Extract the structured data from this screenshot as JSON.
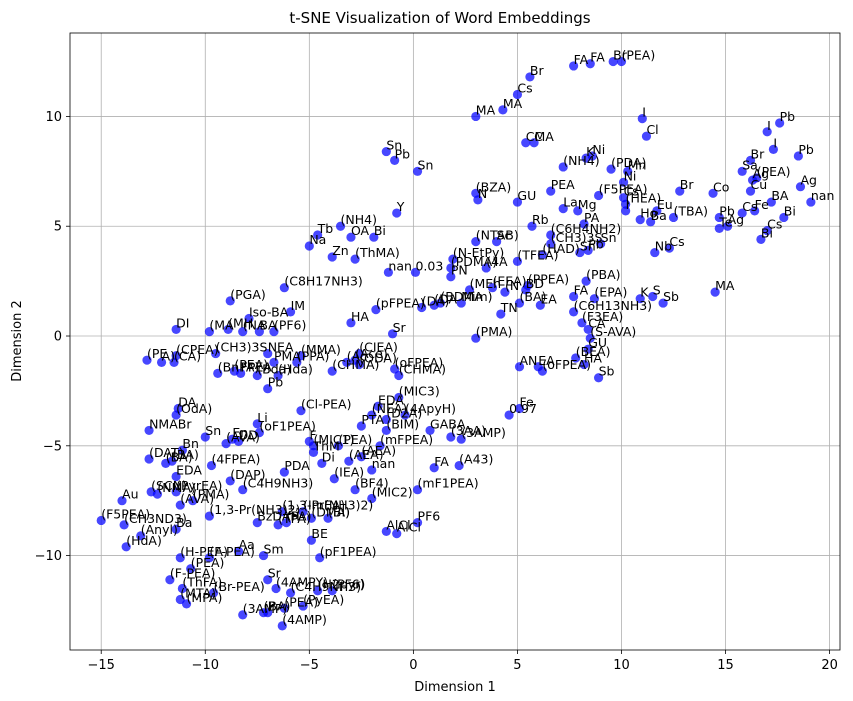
{
  "chart_data": {
    "type": "scatter",
    "title": "t-SNE Visualization of Word Embeddings",
    "xlabel": "Dimension 1",
    "ylabel": "Dimension 2",
    "xlim": [
      -16.5,
      20.5
    ],
    "ylim": [
      -14.3,
      13.8
    ],
    "xticks": [
      -15,
      -10,
      -5,
      0,
      5,
      10,
      15,
      20
    ],
    "yticks": [
      -10,
      -5,
      0,
      5,
      10
    ],
    "grid": true,
    "marker_color": "#0000ff",
    "points": [
      {
        "x": 7.7,
        "y": 12.3,
        "label": "FA"
      },
      {
        "x": 8.5,
        "y": 12.4,
        "label": "FA"
      },
      {
        "x": 9.6,
        "y": 12.5,
        "label": "Br"
      },
      {
        "x": 10.0,
        "y": 12.5,
        "label": "(PEA)"
      },
      {
        "x": 5.6,
        "y": 11.8,
        "label": "Br"
      },
      {
        "x": 5.0,
        "y": 11.0,
        "label": "Cs"
      },
      {
        "x": 4.3,
        "y": 10.3,
        "label": "MA"
      },
      {
        "x": 3.0,
        "y": 10.0,
        "label": "MA"
      },
      {
        "x": 11.0,
        "y": 9.9,
        "label": "I"
      },
      {
        "x": 11.2,
        "y": 9.1,
        "label": "Cl"
      },
      {
        "x": 17.0,
        "y": 9.3,
        "label": "I"
      },
      {
        "x": 17.6,
        "y": 9.7,
        "label": "Pb"
      },
      {
        "x": 5.4,
        "y": 8.8,
        "label": "CMA"
      },
      {
        "x": 5.8,
        "y": 8.8,
        "label": "C"
      },
      {
        "x": 17.3,
        "y": 8.5,
        "label": "I"
      },
      {
        "x": 18.5,
        "y": 8.2,
        "label": "Pb"
      },
      {
        "x": -1.3,
        "y": 8.4,
        "label": "Sn"
      },
      {
        "x": -0.9,
        "y": 8.0,
        "label": "Pb"
      },
      {
        "x": 0.2,
        "y": 7.5,
        "label": "Sn"
      },
      {
        "x": 8.3,
        "y": 8.1,
        "label": "K"
      },
      {
        "x": 8.6,
        "y": 8.2,
        "label": "Ni"
      },
      {
        "x": 7.2,
        "y": 7.7,
        "label": "(NH4)"
      },
      {
        "x": 9.5,
        "y": 7.6,
        "label": "(PDA)"
      },
      {
        "x": 10.3,
        "y": 7.5,
        "label": "Mn"
      },
      {
        "x": 16.2,
        "y": 8.0,
        "label": "Br"
      },
      {
        "x": 15.8,
        "y": 7.5,
        "label": "Sa"
      },
      {
        "x": 16.5,
        "y": 7.2,
        "label": "(PEA)"
      },
      {
        "x": 16.3,
        "y": 7.1,
        "label": "Ag"
      },
      {
        "x": 10.1,
        "y": 7.0,
        "label": "Ni"
      },
      {
        "x": 3.0,
        "y": 6.5,
        "label": "(BZA)"
      },
      {
        "x": 3.1,
        "y": 6.2,
        "label": "N"
      },
      {
        "x": 5.0,
        "y": 6.1,
        "label": "GU"
      },
      {
        "x": 6.6,
        "y": 6.6,
        "label": "PEA"
      },
      {
        "x": 8.9,
        "y": 6.4,
        "label": "(F5PEA)"
      },
      {
        "x": 10.1,
        "y": 6.3,
        "label": "Cs"
      },
      {
        "x": 12.8,
        "y": 6.6,
        "label": "Br"
      },
      {
        "x": 14.4,
        "y": 6.5,
        "label": "Co"
      },
      {
        "x": 16.2,
        "y": 6.6,
        "label": "Cu"
      },
      {
        "x": 17.2,
        "y": 6.1,
        "label": "BA"
      },
      {
        "x": 18.6,
        "y": 6.8,
        "label": "Ag"
      },
      {
        "x": 19.1,
        "y": 6.1,
        "label": "nan"
      },
      {
        "x": 10.2,
        "y": 6.0,
        "label": "(HEA)"
      },
      {
        "x": 7.2,
        "y": 5.8,
        "label": "La"
      },
      {
        "x": 7.9,
        "y": 5.7,
        "label": "Mg"
      },
      {
        "x": 10.2,
        "y": 5.7,
        "label": "I"
      },
      {
        "x": 11.7,
        "y": 5.7,
        "label": "Eu"
      },
      {
        "x": 12.5,
        "y": 5.4,
        "label": "(TBA)"
      },
      {
        "x": 14.7,
        "y": 5.4,
        "label": "Pb"
      },
      {
        "x": 15.8,
        "y": 5.6,
        "label": "Cs"
      },
      {
        "x": 16.4,
        "y": 5.7,
        "label": "Fe"
      },
      {
        "x": 17.8,
        "y": 5.4,
        "label": "Bi"
      },
      {
        "x": -0.8,
        "y": 5.6,
        "label": "Y"
      },
      {
        "x": 8.2,
        "y": 5.1,
        "label": "PA"
      },
      {
        "x": 10.9,
        "y": 5.3,
        "label": "Ho"
      },
      {
        "x": 11.4,
        "y": 5.2,
        "label": "Ba"
      },
      {
        "x": 14.7,
        "y": 4.9,
        "label": "Te"
      },
      {
        "x": 15.1,
        "y": 5.0,
        "label": "Ag"
      },
      {
        "x": 17.0,
        "y": 4.8,
        "label": "Cs"
      },
      {
        "x": -4.6,
        "y": 4.6,
        "label": "Tb"
      },
      {
        "x": -3.5,
        "y": 5.0,
        "label": "(NH4)"
      },
      {
        "x": 5.7,
        "y": 5.0,
        "label": "Rb"
      },
      {
        "x": 3.0,
        "y": 4.3,
        "label": "(NTAB)"
      },
      {
        "x": 6.6,
        "y": 4.6,
        "label": "(C6H4NH2)"
      },
      {
        "x": -3.0,
        "y": 4.5,
        "label": "OA"
      },
      {
        "x": -1.9,
        "y": 4.5,
        "label": "Bi"
      },
      {
        "x": 4.0,
        "y": 4.3,
        "label": "Sc"
      },
      {
        "x": 6.6,
        "y": 4.2,
        "label": "(CH3)3S"
      },
      {
        "x": 9.0,
        "y": 4.2,
        "label": "Sn"
      },
      {
        "x": 16.7,
        "y": 4.4,
        "label": "Bi"
      },
      {
        "x": -5.0,
        "y": 4.1,
        "label": "Na"
      },
      {
        "x": 11.6,
        "y": 3.8,
        "label": "Nb"
      },
      {
        "x": 12.3,
        "y": 4.0,
        "label": "Cs"
      },
      {
        "x": 8.4,
        "y": 3.9,
        "label": "Pb"
      },
      {
        "x": 8.0,
        "y": 3.8,
        "label": "Sn"
      },
      {
        "x": 6.2,
        "y": 3.7,
        "label": "(HAD)"
      },
      {
        "x": 1.9,
        "y": 3.5,
        "label": "(N-EtPy)"
      },
      {
        "x": -3.9,
        "y": 3.6,
        "label": "Zn"
      },
      {
        "x": -2.8,
        "y": 3.5,
        "label": "(ThMA)"
      },
      {
        "x": 5.0,
        "y": 3.4,
        "label": "(TFEA)"
      },
      {
        "x": 1.8,
        "y": 3.1,
        "label": "(PDMA)"
      },
      {
        "x": 3.5,
        "y": 3.1,
        "label": "(4A"
      },
      {
        "x": -1.2,
        "y": 2.9,
        "label": "nan"
      },
      {
        "x": 0.1,
        "y": 2.9,
        "label": "0.03"
      },
      {
        "x": 1.8,
        "y": 2.7,
        "label": "PN"
      },
      {
        "x": -6.2,
        "y": 2.2,
        "label": "(C8H17NH3)"
      },
      {
        "x": 5.5,
        "y": 2.3,
        "label": "(PPEA)"
      },
      {
        "x": 8.3,
        "y": 2.5,
        "label": "(PBA)"
      },
      {
        "x": 3.8,
        "y": 2.2,
        "label": "(EEA)"
      },
      {
        "x": 2.7,
        "y": 2.1,
        "label": "(MEh"
      },
      {
        "x": 4.4,
        "y": 2.0,
        "label": "(N"
      },
      {
        "x": 5.4,
        "y": 2.1,
        "label": "BD"
      },
      {
        "x": 7.7,
        "y": 1.8,
        "label": "FA"
      },
      {
        "x": 8.7,
        "y": 1.7,
        "label": "(EPA)"
      },
      {
        "x": 10.9,
        "y": 1.7,
        "label": "K"
      },
      {
        "x": 11.5,
        "y": 1.8,
        "label": "S"
      },
      {
        "x": 12.0,
        "y": 1.5,
        "label": "Sb"
      },
      {
        "x": 14.5,
        "y": 2.0,
        "label": "MA"
      },
      {
        "x": -8.8,
        "y": 1.6,
        "label": "(PGA)"
      },
      {
        "x": 1.3,
        "y": 1.5,
        "label": "(BDMA"
      },
      {
        "x": 2.3,
        "y": 1.5,
        "label": "Mim)"
      },
      {
        "x": 1.0,
        "y": 1.4,
        "label": "(DA"
      },
      {
        "x": 0.4,
        "y": 1.3,
        "label": "(DA)"
      },
      {
        "x": 5.1,
        "y": 1.5,
        "label": "(BA)"
      },
      {
        "x": 6.1,
        "y": 1.4,
        "label": "EA"
      },
      {
        "x": -5.9,
        "y": 1.1,
        "label": "IM"
      },
      {
        "x": -1.8,
        "y": 1.2,
        "label": "(pFPEA)"
      },
      {
        "x": -7.9,
        "y": 0.8,
        "label": "Iso-BA"
      },
      {
        "x": 4.2,
        "y": 1.0,
        "label": "TN"
      },
      {
        "x": 7.7,
        "y": 1.1,
        "label": "(C6H13NH3)"
      },
      {
        "x": 8.1,
        "y": 0.6,
        "label": "(F3EA)"
      },
      {
        "x": -11.4,
        "y": 0.3,
        "label": "DI"
      },
      {
        "x": -9.8,
        "y": 0.2,
        "label": "(MA"
      },
      {
        "x": -8.9,
        "y": 0.3,
        "label": "(MH"
      },
      {
        "x": -8.2,
        "y": 0.2,
        "label": "(NA"
      },
      {
        "x": -7.4,
        "y": 0.2,
        "label": "BA"
      },
      {
        "x": -6.7,
        "y": 0.2,
        "label": "(PF6)"
      },
      {
        "x": -3.0,
        "y": 0.6,
        "label": "HA"
      },
      {
        "x": -1.0,
        "y": 0.1,
        "label": "Sr"
      },
      {
        "x": 8.4,
        "y": 0.3,
        "label": "CA"
      },
      {
        "x": 8.5,
        "y": -0.1,
        "label": "(S-AVA)"
      },
      {
        "x": 3.0,
        "y": -0.1,
        "label": "(PMA)"
      },
      {
        "x": 8.4,
        "y": -0.6,
        "label": "GU"
      },
      {
        "x": -11.4,
        "y": -0.9,
        "label": "(CPEA)"
      },
      {
        "x": -12.8,
        "y": -1.1,
        "label": "(PE"
      },
      {
        "x": -12.1,
        "y": -1.2,
        "label": "A)"
      },
      {
        "x": -11.5,
        "y": -1.2,
        "label": "(CA)"
      },
      {
        "x": -9.5,
        "y": -0.8,
        "label": "(CH3)3S"
      },
      {
        "x": -7.0,
        "y": -0.8,
        "label": "NEA"
      },
      {
        "x": -5.4,
        "y": -0.9,
        "label": "(MMA)"
      },
      {
        "x": -2.6,
        "y": -0.8,
        "label": "(CIEA)"
      },
      {
        "x": -2.8,
        "y": -1.1,
        "label": "(Ace)"
      },
      {
        "x": -3.2,
        "y": -1.2,
        "label": "(Ac"
      },
      {
        "x": -2.6,
        "y": -1.3,
        "label": "(ODA)"
      },
      {
        "x": -6.7,
        "y": -1.2,
        "label": "PMA"
      },
      {
        "x": -5.6,
        "y": -1.2,
        "label": "(PPA)"
      },
      {
        "x": 7.8,
        "y": -1.0,
        "label": "(BEA)"
      },
      {
        "x": 8.2,
        "y": -1.3,
        "label": "HA"
      },
      {
        "x": 5.1,
        "y": -1.4,
        "label": "AN"
      },
      {
        "x": 6.0,
        "y": -1.4,
        "label": "EA"
      },
      {
        "x": -9.4,
        "y": -1.7,
        "label": "(BnPA)"
      },
      {
        "x": -8.6,
        "y": -1.6,
        "label": "(PEA)"
      },
      {
        "x": -8.3,
        "y": -1.7,
        "label": "FPEA"
      },
      {
        "x": -7.5,
        "y": -1.8,
        "label": "(Bda)"
      },
      {
        "x": -6.5,
        "y": -1.8,
        "label": "(Hda)"
      },
      {
        "x": -7.0,
        "y": -2.4,
        "label": "Pb"
      },
      {
        "x": -3.9,
        "y": -1.6,
        "label": "(CHMA)"
      },
      {
        "x": -0.9,
        "y": -1.5,
        "label": "(oFPEA)"
      },
      {
        "x": 6.2,
        "y": -1.6,
        "label": "(oFPEA)"
      },
      {
        "x": 8.9,
        "y": -1.9,
        "label": "Sb"
      },
      {
        "x": -0.7,
        "y": -1.8,
        "label": "(CHMA)"
      },
      {
        "x": -0.7,
        "y": -2.8,
        "label": "(MIC3)"
      },
      {
        "x": -1.7,
        "y": -3.2,
        "label": "EDA"
      },
      {
        "x": -11.3,
        "y": -3.3,
        "label": "DA"
      },
      {
        "x": -11.4,
        "y": -3.6,
        "label": "(OdA)"
      },
      {
        "x": -5.4,
        "y": -3.4,
        "label": "(Cl-PEA)"
      },
      {
        "x": 5.1,
        "y": -3.3,
        "label": "Fe"
      },
      {
        "x": 4.6,
        "y": -3.6,
        "label": "0.97"
      },
      {
        "x": -2.0,
        "y": -3.6,
        "label": "(NEA)"
      },
      {
        "x": -1.3,
        "y": -3.8,
        "label": "(D2A)"
      },
      {
        "x": -0.4,
        "y": -3.6,
        "label": "(4ApyH)"
      },
      {
        "x": -12.7,
        "y": -4.3,
        "label": "NMABr"
      },
      {
        "x": -7.5,
        "y": -4.0,
        "label": "Li"
      },
      {
        "x": -2.5,
        "y": -4.1,
        "label": "PTA"
      },
      {
        "x": -1.3,
        "y": -4.3,
        "label": "(BIM)"
      },
      {
        "x": 0.8,
        "y": -4.3,
        "label": "GABA"
      },
      {
        "x": 1.8,
        "y": -4.6,
        "label": "(3AA)"
      },
      {
        "x": 2.3,
        "y": -4.7,
        "label": "(3AMP)"
      },
      {
        "x": -7.4,
        "y": -4.4,
        "label": "(oF1PEA)"
      },
      {
        "x": -10.0,
        "y": -4.6,
        "label": "Sn"
      },
      {
        "x": -8.7,
        "y": -4.7,
        "label": "En"
      },
      {
        "x": -8.4,
        "y": -4.8,
        "label": "DD"
      },
      {
        "x": -9.0,
        "y": -4.9,
        "label": "(AVA)"
      },
      {
        "x": -5.0,
        "y": -4.8,
        "label": "F"
      },
      {
        "x": -4.8,
        "y": -5.0,
        "label": "(MIC1)"
      },
      {
        "x": -3.6,
        "y": -5.0,
        "label": "(PEA)"
      },
      {
        "x": -1.6,
        "y": -5.0,
        "label": "(mFPEA)"
      },
      {
        "x": -11.1,
        "y": -5.2,
        "label": "Bn"
      },
      {
        "x": -12.7,
        "y": -5.6,
        "label": "(DAT)"
      },
      {
        "x": -11.6,
        "y": -5.7,
        "label": "(BA)"
      },
      {
        "x": -11.9,
        "y": -5.8,
        "label": "(BA)"
      },
      {
        "x": -4.8,
        "y": -5.3,
        "label": "ThM"
      },
      {
        "x": -4.4,
        "y": -5.8,
        "label": "Di"
      },
      {
        "x": -3.1,
        "y": -5.7,
        "label": "(AEA)"
      },
      {
        "x": -2.5,
        "y": -5.5,
        "label": "(AEA)"
      },
      {
        "x": -9.7,
        "y": -5.9,
        "label": "(4FPEA)"
      },
      {
        "x": -2.0,
        "y": -6.1,
        "label": "nan"
      },
      {
        "x": 1.0,
        "y": -6.0,
        "label": "FA"
      },
      {
        "x": 2.2,
        "y": -5.9,
        "label": "(A43)"
      },
      {
        "x": -11.4,
        "y": -6.4,
        "label": "EDA"
      },
      {
        "x": -6.2,
        "y": -6.2,
        "label": "PDA"
      },
      {
        "x": -3.8,
        "y": -6.5,
        "label": "(IEA)"
      },
      {
        "x": -8.8,
        "y": -6.6,
        "label": "(DAP)"
      },
      {
        "x": -12.6,
        "y": -7.1,
        "label": "(SCN)"
      },
      {
        "x": -12.3,
        "y": -7.2,
        "label": "(NMA)"
      },
      {
        "x": -11.4,
        "y": -7.1,
        "label": "(PyrEA)"
      },
      {
        "x": -8.2,
        "y": -7.0,
        "label": "(C4H9NH3)"
      },
      {
        "x": -2.8,
        "y": -7.0,
        "label": "(BF4)"
      },
      {
        "x": 0.2,
        "y": -7.0,
        "label": "(mF1PEA)"
      },
      {
        "x": -2.0,
        "y": -7.4,
        "label": "(MIC2)"
      },
      {
        "x": -14.0,
        "y": -7.5,
        "label": "Au"
      },
      {
        "x": -10.6,
        "y": -7.5,
        "label": "(PMA)"
      },
      {
        "x": -11.2,
        "y": -7.7,
        "label": "(AVA)"
      },
      {
        "x": -6.3,
        "y": -8.0,
        "label": "(1,3-Pr(NH3)2)"
      },
      {
        "x": -5.3,
        "y": -8.0,
        "label": "(ImEA)"
      },
      {
        "x": -4.9,
        "y": -8.3,
        "label": "(DMA)"
      },
      {
        "x": -4.1,
        "y": -8.3,
        "label": "(BI)"
      },
      {
        "x": -9.8,
        "y": -8.2,
        "label": "(1,3-Pr(NH3)2)"
      },
      {
        "x": -7.5,
        "y": -8.5,
        "label": "BzDAH"
      },
      {
        "x": -6.5,
        "y": -8.6,
        "label": "(TPA)"
      },
      {
        "x": -6.1,
        "y": -8.5,
        "label": "(PA)"
      },
      {
        "x": -15.0,
        "y": -8.4,
        "label": "(F5PEA)"
      },
      {
        "x": -13.9,
        "y": -8.6,
        "label": "(CH3ND3)"
      },
      {
        "x": -11.4,
        "y": -8.8,
        "label": "Ba"
      },
      {
        "x": -13.1,
        "y": -9.1,
        "label": "(Anyl)"
      },
      {
        "x": 0.2,
        "y": -8.5,
        "label": "PF6"
      },
      {
        "x": -1.3,
        "y": -8.9,
        "label": "AlCl"
      },
      {
        "x": -0.8,
        "y": -9.0,
        "label": "AlCl"
      },
      {
        "x": -4.9,
        "y": -9.3,
        "label": "BE"
      },
      {
        "x": -13.8,
        "y": -9.6,
        "label": "(HdA)"
      },
      {
        "x": -11.2,
        "y": -10.1,
        "label": "(H-PEA)"
      },
      {
        "x": -9.8,
        "y": -10.1,
        "label": "(F-PEA)"
      },
      {
        "x": -8.4,
        "y": -9.8,
        "label": "Aa"
      },
      {
        "x": -7.2,
        "y": -10.0,
        "label": "Sm"
      },
      {
        "x": -4.5,
        "y": -10.1,
        "label": "(pF1PEA)"
      },
      {
        "x": -10.7,
        "y": -10.6,
        "label": "(PEA)"
      },
      {
        "x": -11.7,
        "y": -11.1,
        "label": "(F-PEA)"
      },
      {
        "x": -11.1,
        "y": -11.5,
        "label": "(ThFA)"
      },
      {
        "x": -9.6,
        "y": -11.7,
        "label": "(Br-PEA)"
      },
      {
        "x": -7.0,
        "y": -11.1,
        "label": "Sr"
      },
      {
        "x": -6.6,
        "y": -11.5,
        "label": "(4AMPY)"
      },
      {
        "x": -5.9,
        "y": -11.7,
        "label": "(C4H9NH3)"
      },
      {
        "x": -4.6,
        "y": -11.6,
        "label": "(H2pyr)"
      },
      {
        "x": -3.9,
        "y": -11.6,
        "label": "(PF6)"
      },
      {
        "x": -11.2,
        "y": -12.0,
        "label": "(MTA)"
      },
      {
        "x": -10.9,
        "y": -12.2,
        "label": "(MPA)"
      },
      {
        "x": -5.3,
        "y": -12.3,
        "label": "(PyEA)"
      },
      {
        "x": -6.2,
        "y": -12.4,
        "label": "(PEA)"
      },
      {
        "x": -8.2,
        "y": -12.7,
        "label": "(3AMP)"
      },
      {
        "x": -7.2,
        "y": -12.6,
        "label": "(BA)"
      },
      {
        "x": -7.0,
        "y": -12.6,
        "label": "P"
      },
      {
        "x": -6.3,
        "y": -13.2,
        "label": "(4AMP)"
      }
    ]
  }
}
